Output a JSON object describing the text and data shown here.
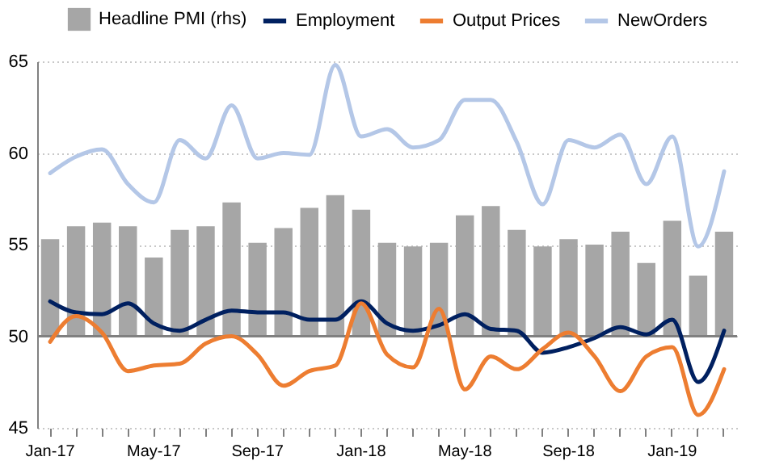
{
  "chart_data": {
    "type": "line",
    "categories": [
      "Jan-17",
      null,
      null,
      null,
      "May-17",
      null,
      null,
      null,
      "Sep-17",
      null,
      null,
      null,
      "Jan-18",
      null,
      null,
      null,
      "May-18",
      null,
      null,
      null,
      "Sep-18",
      null,
      null,
      null,
      "Jan-19",
      null,
      null
    ],
    "series": [
      {
        "name": "Headline PMI (rhs)",
        "type": "bar",
        "color": "#a6a6a6",
        "base": [
          50,
          50,
          50,
          50,
          50,
          50,
          50,
          50,
          50,
          50,
          50,
          50,
          50,
          50,
          50,
          50,
          50,
          50,
          50,
          50,
          50,
          50,
          50,
          50,
          50,
          50,
          50
        ],
        "values": [
          5.3,
          6.0,
          6.2,
          6.0,
          4.3,
          5.8,
          6.0,
          7.3,
          5.1,
          5.9,
          7.0,
          7.7,
          6.9,
          5.1,
          4.9,
          5.1,
          6.6,
          7.1,
          5.8,
          4.9,
          5.3,
          5.0,
          5.7,
          4.0,
          6.3,
          3.3,
          5.7
        ]
      },
      {
        "name": "Employment",
        "color": "#002060",
        "values": [
          51.9,
          51.3,
          51.2,
          51.8,
          50.7,
          50.3,
          50.9,
          51.4,
          51.3,
          51.3,
          50.9,
          50.9,
          51.9,
          50.7,
          50.3,
          50.6,
          51.2,
          50.4,
          50.3,
          49.1,
          49.4,
          49.9,
          50.5,
          50.1,
          50.9,
          47.5,
          50.3
        ]
      },
      {
        "name": "Output Prices",
        "color": "#ed7d31",
        "values": [
          49.7,
          51.1,
          50.2,
          48.1,
          48.4,
          48.5,
          49.6,
          50.0,
          49.0,
          47.3,
          48.1,
          48.4,
          51.8,
          49.0,
          48.3,
          51.5,
          47.1,
          48.9,
          48.2,
          49.3,
          50.2,
          48.9,
          47.0,
          48.9,
          49.4,
          45.7,
          48.2
        ]
      },
      {
        "name": "NewOrders",
        "color": "#b4c7e7",
        "values": [
          58.9,
          59.8,
          60.2,
          58.3,
          57.3,
          60.7,
          59.7,
          62.6,
          59.7,
          60.0,
          59.9,
          64.8,
          60.9,
          61.3,
          60.3,
          60.7,
          62.9,
          62.9,
          60.6,
          57.2,
          60.7,
          60.3,
          61.0,
          58.3,
          60.9,
          54.9,
          59.0
        ]
      }
    ],
    "ylim": [
      45,
      65
    ],
    "yticks": [
      45,
      50,
      55,
      60,
      65
    ],
    "grid": "y",
    "legend": "top",
    "ref_lines": [
      {
        "axis": "y",
        "value": 50,
        "color": "#808080"
      }
    ]
  }
}
